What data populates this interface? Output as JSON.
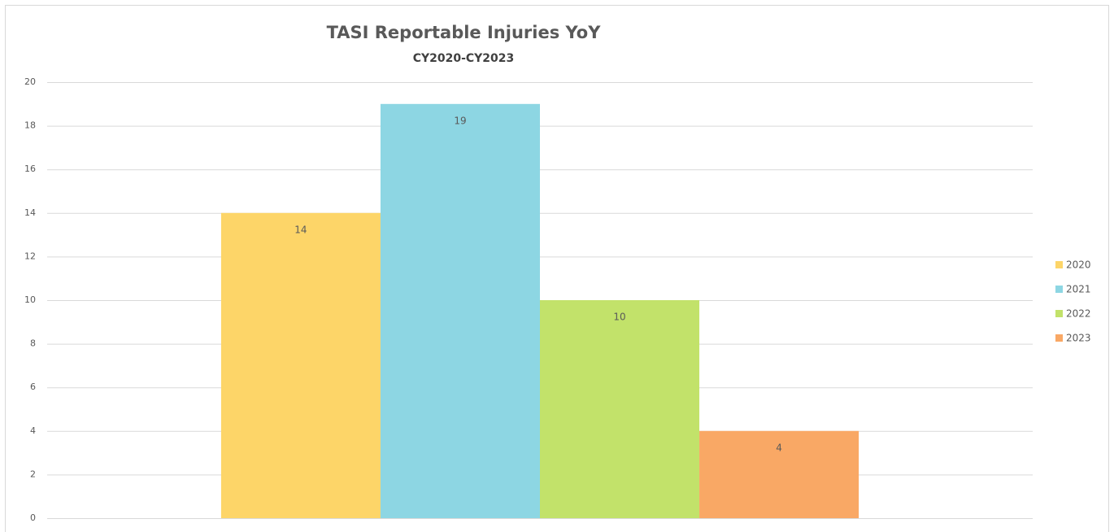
{
  "chart_data": {
    "type": "bar",
    "title": "TASI Reportable Injuries YoY",
    "subtitle": "CY2020-CY2023",
    "categories": [
      null
    ],
    "series": [
      {
        "name": "2020",
        "color": "#fdd568",
        "values": [
          14
        ]
      },
      {
        "name": "2021",
        "color": "#8dd6e3",
        "values": [
          19
        ]
      },
      {
        "name": "2022",
        "color": "#c2e26a",
        "values": [
          10
        ]
      },
      {
        "name": "2023",
        "color": "#f9a865",
        "values": [
          4
        ]
      }
    ],
    "ylim": [
      0,
      20
    ],
    "yticks": [
      0,
      2,
      4,
      6,
      8,
      10,
      12,
      14,
      16,
      18,
      20
    ],
    "grid": true,
    "legend": "right"
  }
}
